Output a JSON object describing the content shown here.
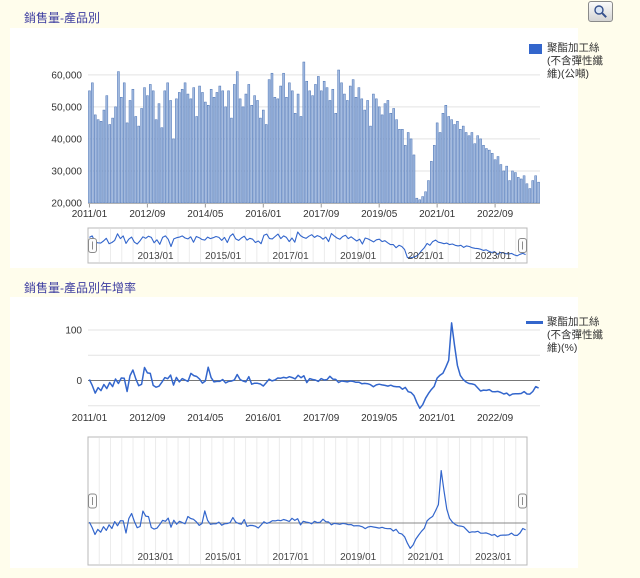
{
  "colors": {
    "page_bg": "#fffdec",
    "panel_bg": "#ffffff",
    "title": "#3d3da0",
    "accent": "#3366cc",
    "bar_fill": "#a3bbe0",
    "bar_stroke": "#4a72b4",
    "grid": "#e3e3e3",
    "axis_line": "#b3b3b3",
    "axis_text": "#333333",
    "nav_border": "#b8b8b8",
    "zero_line": "#777777"
  },
  "toolbar": {
    "zoom_button_icon": "magnifier-icon"
  },
  "chart1": {
    "title": "銷售量-產品別",
    "legend_lines": [
      "聚酯加工絲",
      "(不含彈性纖",
      "維)(公噸)"
    ],
    "y_ticks": [
      {
        "label": "60,000",
        "value": 60000
      },
      {
        "label": "50,000",
        "value": 50000
      },
      {
        "label": "40,000",
        "value": 40000
      },
      {
        "label": "30,000",
        "value": 30000
      },
      {
        "label": "20,000",
        "value": 20000
      }
    ],
    "x_ticks": [
      {
        "label": "2011/01",
        "m": 0
      },
      {
        "label": "2012/09",
        "m": 20
      },
      {
        "label": "2014/05",
        "m": 40
      },
      {
        "label": "2016/01",
        "m": 60
      },
      {
        "label": "2017/09",
        "m": 80
      },
      {
        "label": "2019/05",
        "m": 100
      },
      {
        "label": "2021/01",
        "m": 120
      },
      {
        "label": "2022/09",
        "m": 140
      }
    ],
    "nav_ticks": [
      {
        "label": "2013/01",
        "m": 24
      },
      {
        "label": "2015/01",
        "m": 48
      },
      {
        "label": "2017/01",
        "m": 72
      },
      {
        "label": "2019/01",
        "m": 96
      },
      {
        "label": "2021/01",
        "m": 120
      },
      {
        "label": "2023/01",
        "m": 144
      }
    ]
  },
  "chart2": {
    "title": "銷售量-產品別年增率",
    "legend_lines": [
      "聚酯加工絲",
      "(不含彈性纖",
      "維)(%)"
    ],
    "y_ticks": [
      {
        "label": "100",
        "value": 100
      },
      {
        "label": "0",
        "value": 0
      }
    ],
    "gridline_values": [
      100,
      50,
      -50
    ],
    "x_ticks": [
      {
        "label": "2011/01",
        "m": 0
      },
      {
        "label": "2012/09",
        "m": 20
      },
      {
        "label": "2014/05",
        "m": 40
      },
      {
        "label": "2016/01",
        "m": 60
      },
      {
        "label": "2017/09",
        "m": 80
      },
      {
        "label": "2019/05",
        "m": 100
      },
      {
        "label": "2021/01",
        "m": 120
      },
      {
        "label": "2022/09",
        "m": 140
      }
    ],
    "nav_ticks": [
      {
        "label": "2013/01",
        "m": 24
      },
      {
        "label": "2015/01",
        "m": 48
      },
      {
        "label": "2017/01",
        "m": 72
      },
      {
        "label": "2019/01",
        "m": 96
      },
      {
        "label": "2021/01",
        "m": 120
      },
      {
        "label": "2023/01",
        "m": 144
      }
    ]
  },
  "chart_data": [
    {
      "type": "bar",
      "title": "銷售量-產品別",
      "ylabel": "公噸",
      "ylim": [
        20000,
        64000
      ],
      "yticks": [
        20000,
        30000,
        40000,
        50000,
        60000
      ],
      "xticks": [
        "2011/01",
        "2012/09",
        "2014/05",
        "2016/01",
        "2017/09",
        "2019/05",
        "2021/01",
        "2022/09"
      ],
      "legend_position": "right",
      "grid": "horizontal",
      "series": [
        {
          "name": "聚酯加工絲(不含彈性纖維)(公噸)",
          "start": "2011/01",
          "interval": "month",
          "values": [
            55000,
            57500,
            47500,
            46000,
            45500,
            49000,
            53500,
            44500,
            46500,
            50000,
            61000,
            53000,
            57500,
            45000,
            52000,
            55500,
            47000,
            44000,
            49500,
            56000,
            53500,
            57000,
            55000,
            46000,
            51000,
            43500,
            55000,
            57500,
            52000,
            40000,
            52500,
            54500,
            55500,
            57500,
            54000,
            52500,
            56000,
            47000,
            56500,
            54500,
            51500,
            50500,
            55500,
            53000,
            54500,
            56500,
            55000,
            50000,
            55000,
            46500,
            57000,
            61000,
            52500,
            50000,
            54000,
            57000,
            50500,
            53500,
            52000,
            46500,
            49000,
            44500,
            58500,
            60500,
            53000,
            52500,
            56500,
            60500,
            53000,
            57500,
            55000,
            48000,
            54000,
            47000,
            64000,
            58000,
            55000,
            53500,
            57000,
            59500,
            55000,
            58000,
            56000,
            52000,
            55500,
            48000,
            61500,
            57500,
            54000,
            52000,
            56500,
            58500,
            53000,
            56000,
            52500,
            49000,
            52000,
            44000,
            54000,
            52500,
            50000,
            47500,
            51000,
            52000,
            48000,
            49500,
            46000,
            43000,
            43000,
            38000,
            42000,
            40000,
            35000,
            21500,
            21000,
            22000,
            23500,
            27000,
            33000,
            38000,
            45000,
            42000,
            48000,
            50500,
            47000,
            46000,
            44500,
            45500,
            43000,
            44000,
            42000,
            41000,
            42000,
            38500,
            41000,
            40000,
            38000,
            37000,
            36500,
            35500,
            33500,
            34500,
            32000,
            30000,
            31500,
            27000,
            30000,
            29500,
            28000,
            27500,
            28500,
            26000,
            24500,
            27000,
            28500,
            26500
          ]
        }
      ],
      "navigator_ticks": [
        "2013/01",
        "2015/01",
        "2017/01",
        "2019/01",
        "2021/01",
        "2023/01"
      ]
    },
    {
      "type": "line",
      "title": "銷售量-產品別年增率",
      "ylabel": "%",
      "ylim": [
        -60,
        130
      ],
      "yticks": [
        0,
        100
      ],
      "gridlines": [
        -50,
        0,
        50,
        100
      ],
      "xticks": [
        "2011/01",
        "2012/09",
        "2014/05",
        "2016/01",
        "2017/09",
        "2019/05",
        "2021/01",
        "2022/09"
      ],
      "legend_position": "right",
      "series": [
        {
          "name": "聚酯加工絲(不含彈性纖維)(%)",
          "start": "2011/01",
          "interval": "month",
          "values": [
            2,
            -10,
            -25,
            -14,
            -20,
            -8,
            -16,
            -4,
            -12,
            3,
            -6,
            5,
            4.5,
            -21.7,
            9.5,
            20.7,
            3.3,
            -10.2,
            -7.5,
            25.8,
            15.1,
            14,
            -9.8,
            -13.2,
            -11.3,
            -3.3,
            5.8,
            3.6,
            10.6,
            -9.1,
            6.1,
            -2.7,
            3.7,
            0.9,
            -1.8,
            14.1,
            9.8,
            8,
            2.7,
            -5.2,
            -1,
            26.3,
            5.7,
            -2.8,
            -1.8,
            -1.7,
            1.9,
            -4.8,
            -1.8,
            -1.1,
            0.9,
            11.9,
            1.9,
            -1,
            -2.7,
            7.5,
            -7.3,
            -5.3,
            -5.5,
            -7,
            -10.9,
            -4.3,
            2.6,
            -0.8,
            1,
            5,
            4.6,
            6.1,
            5,
            7.5,
            5.8,
            3.2,
            10.2,
            5.6,
            9.4,
            -4.1,
            3.8,
            1.9,
            0.9,
            -1.7,
            3.8,
            0.9,
            1.8,
            8.3,
            2.8,
            2.1,
            -3.9,
            -0.9,
            -1.8,
            -2.8,
            -0.9,
            -1.7,
            -3.6,
            -3.4,
            -6.3,
            -5.8,
            -6.3,
            -8.3,
            -12.2,
            -8.7,
            -7.4,
            -8.7,
            -9.7,
            -11.1,
            -9.4,
            -11.6,
            -12.4,
            -12.2,
            -17.3,
            -13.6,
            -22.2,
            -23.8,
            -30,
            -44,
            -55,
            -48,
            -35,
            -26,
            -18,
            -11.6,
            4.7,
            10.5,
            14.3,
            26.3,
            40,
            114,
            70,
            30,
            10,
            2,
            -3,
            -6,
            -6.7,
            -8.3,
            -14.6,
            -20.8,
            -19.1,
            -19.6,
            -18,
            -22,
            -22.1,
            -21.6,
            -23.8,
            -26.8,
            -25,
            -29.9,
            -26.8,
            -26.3,
            -26.3,
            -25.7,
            -21.9,
            -26.8,
            -26.9,
            -21.7,
            -12,
            -15
          ]
        }
      ],
      "navigator_ticks": [
        "2013/01",
        "2015/01",
        "2017/01",
        "2019/01",
        "2021/01",
        "2023/01"
      ]
    }
  ]
}
